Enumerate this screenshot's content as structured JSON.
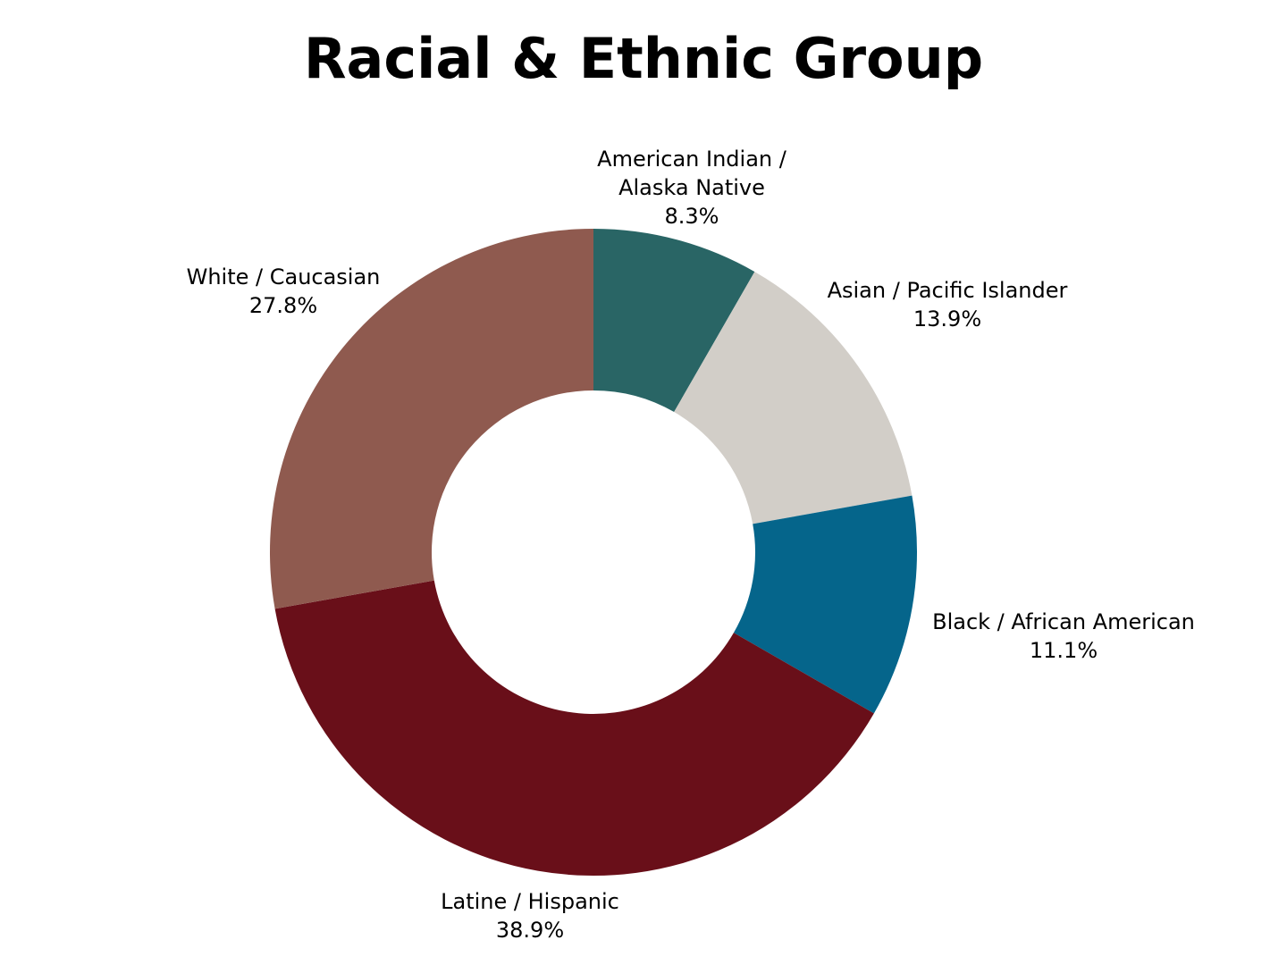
{
  "chart_data": {
    "type": "pie",
    "title": "Racial & Ethnic Group",
    "donut": true,
    "slices": [
      {
        "label_lines": [
          "American Indian /",
          "Alaska Native"
        ],
        "value": 8.3,
        "value_label": "8.3%",
        "color": "#296565"
      },
      {
        "label_lines": [
          "Asian / Pacific Islander"
        ],
        "value": 13.9,
        "value_label": "13.9%",
        "color": "#d2cec8"
      },
      {
        "label_lines": [
          "Black / African American"
        ],
        "value": 11.1,
        "value_label": "11.1%",
        "color": "#05658b"
      },
      {
        "label_lines": [
          "Latine / Hispanic"
        ],
        "value": 38.9,
        "value_label": "38.9%",
        "color": "#690f19"
      },
      {
        "label_lines": [
          "White / Caucasian"
        ],
        "value": 27.8,
        "value_label": "27.8%",
        "color": "#8f5a4f"
      }
    ]
  }
}
